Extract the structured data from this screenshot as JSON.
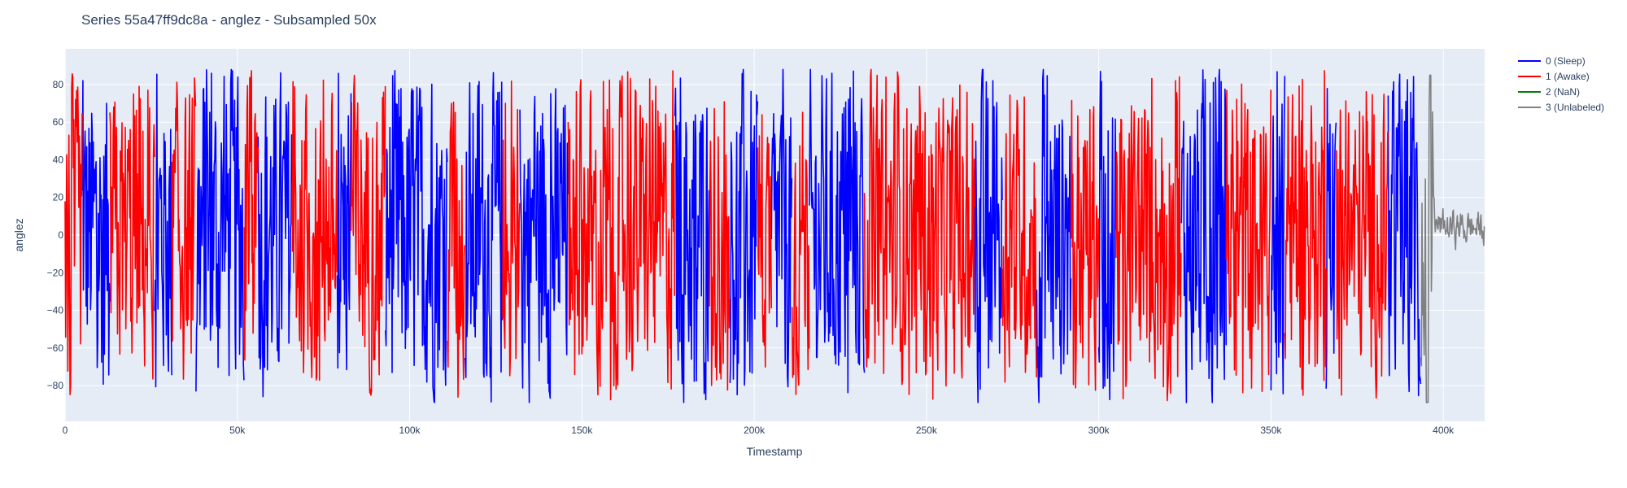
{
  "chart_data": {
    "type": "line",
    "title": "Series 55a47ff9dc8a - anglez - Subsampled 50x",
    "xlabel": "Timestamp",
    "ylabel": "anglez",
    "xlim": [
      0,
      412000
    ],
    "ylim": [
      -99,
      99
    ],
    "x_ticks": [
      0,
      50000,
      100000,
      150000,
      200000,
      250000,
      300000,
      350000,
      400000
    ],
    "x_tick_labels": [
      "0",
      "50k",
      "100k",
      "150k",
      "200k",
      "250k",
      "300k",
      "350k",
      "400k"
    ],
    "y_ticks": [
      -80,
      -60,
      -40,
      -20,
      0,
      20,
      40,
      60,
      80
    ],
    "y_tick_labels": [
      "−80",
      "−60",
      "−40",
      "−20",
      "0",
      "20",
      "40",
      "60",
      "80"
    ],
    "grid": true,
    "legend_position": "top-right",
    "series": [
      {
        "name": "0 (Sleep)",
        "color": "#0000ff",
        "segments": [
          [
            5000,
            13000
          ],
          [
            26000,
            31000
          ],
          [
            38000,
            52000
          ],
          [
            56000,
            66000
          ],
          [
            79000,
            83000
          ],
          [
            93000,
            111000
          ],
          [
            116000,
            127000
          ],
          [
            132000,
            146000
          ],
          [
            177000,
            187000
          ],
          [
            193000,
            201000
          ],
          [
            205000,
            211000
          ],
          [
            216000,
            232000
          ],
          [
            264000,
            272000
          ],
          [
            282000,
            292000
          ],
          [
            300000,
            305000
          ],
          [
            324000,
            337000
          ],
          [
            350000,
            354000
          ],
          [
            366000,
            369000
          ],
          [
            384000,
            393500
          ]
        ],
        "amplitude": 80
      },
      {
        "name": "1 (Awake)",
        "color": "#ff0000",
        "segments": [
          [
            0,
            5000
          ],
          [
            13000,
            26000
          ],
          [
            31000,
            38000
          ],
          [
            52000,
            56000
          ],
          [
            66000,
            79000
          ],
          [
            83000,
            93000
          ],
          [
            111000,
            116000
          ],
          [
            127000,
            132000
          ],
          [
            146000,
            177000
          ],
          [
            187000,
            193000
          ],
          [
            201000,
            205000
          ],
          [
            211000,
            216000
          ],
          [
            232000,
            264000
          ],
          [
            272000,
            282000
          ],
          [
            292000,
            300000
          ],
          [
            305000,
            324000
          ],
          [
            337000,
            350000
          ],
          [
            354000,
            366000
          ],
          [
            369000,
            384000
          ]
        ],
        "amplitude": 72
      },
      {
        "name": "2 (NaN)",
        "color": "#008000",
        "segments": [],
        "amplitude": 0
      },
      {
        "name": "3 (Unlabeled)",
        "color": "#808080",
        "segments": [
          [
            393500,
            412000
          ]
        ],
        "amplitude": 20,
        "notes": "large swings near 393500-397000 (down to about -89, up to about 85), then small oscillation around 0 to 20"
      }
    ]
  }
}
